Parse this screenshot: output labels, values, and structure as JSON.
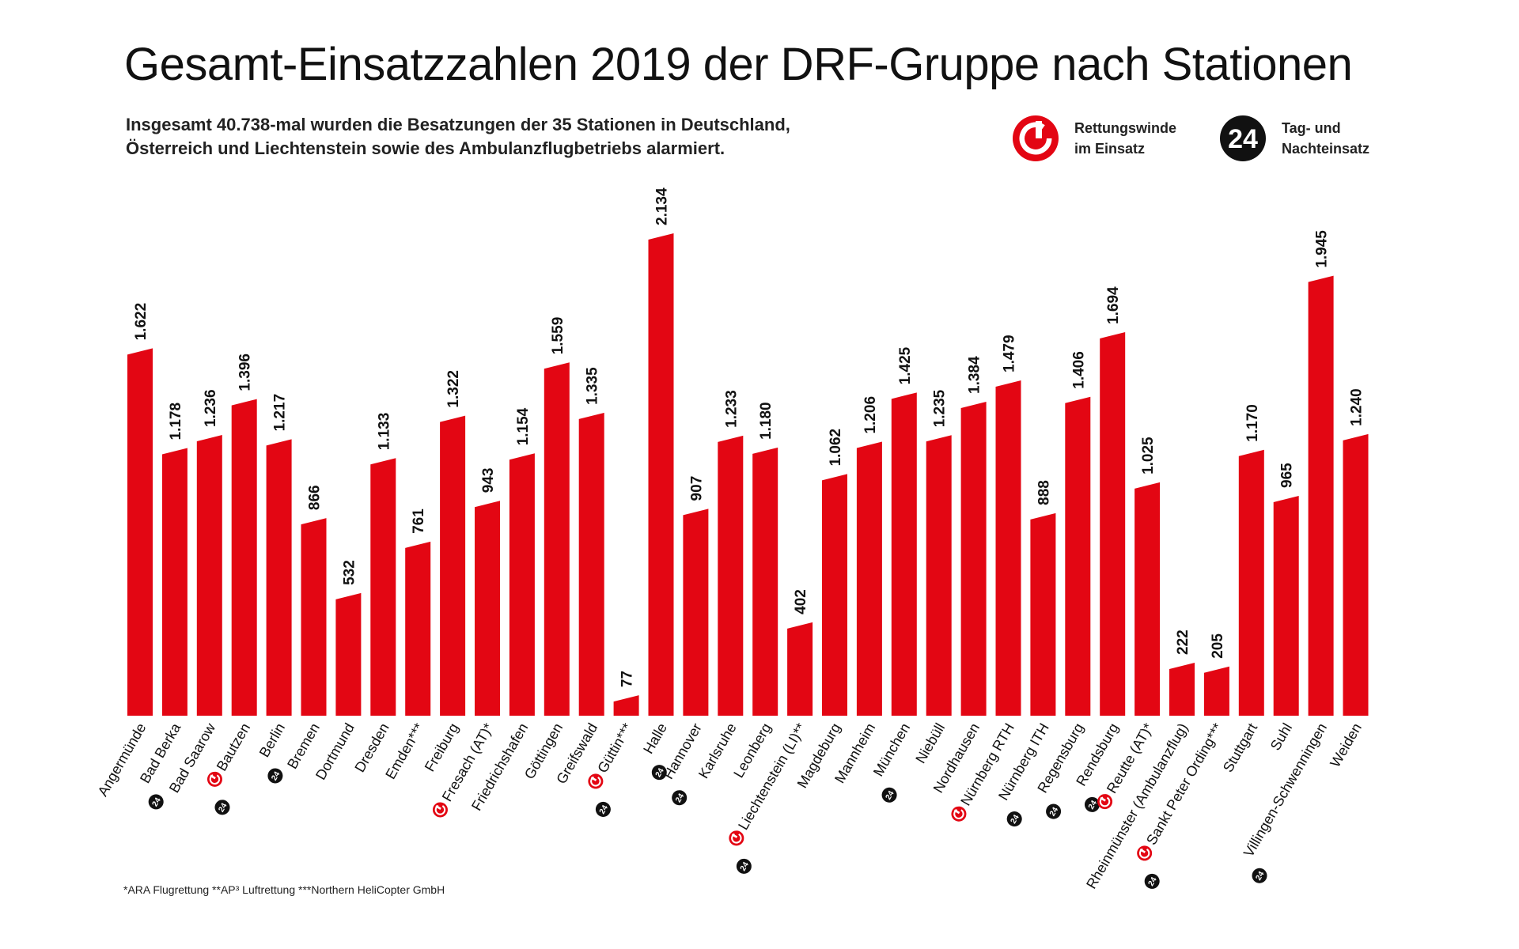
{
  "page": {
    "title": "Gesamt-Einsatzzahlen 2019 der DRF-Gruppe nach Stationen",
    "subtitle": "Insgesamt 40.738-mal wurden die Besatzungen der 35 Stationen in Deutschland, Österreich und Liechtenstein sowie des Ambulanzflugbetriebs alarmiert.",
    "footnote": "*ARA Flugrettung   **AP³ Luftrettung   ***Northern HeliCopter GmbH"
  },
  "legend": {
    "winch_line1": "Rettungswinde",
    "winch_line2": "im Einsatz",
    "night_line1": "Tag- und",
    "night_line2": "Nachteinsatz",
    "badge_text": "24"
  },
  "colors": {
    "bar": "#e30613",
    "badge": "#111111",
    "text": "#111111"
  },
  "chart_data": {
    "type": "bar",
    "title": "Gesamt-Einsatzzahlen 2019 der DRF-Gruppe nach Stationen",
    "xlabel": "",
    "ylabel": "",
    "ylim": [
      0,
      2134
    ],
    "grid": false,
    "categories": [
      "Angermünde",
      "Bad Berka",
      "Bad Saarow",
      "Bautzen",
      "Berlin",
      "Bremen",
      "Dortmund",
      "Dresden",
      "Emden***",
      "Freiburg",
      "Fresach (AT)*",
      "Friedrichshafen",
      "Göttingen",
      "Greifswald",
      "Güttin***",
      "Halle",
      "Hannover",
      "Karlsruhe",
      "Leonberg",
      "Liechtenstein (LI)**",
      "Magdeburg",
      "Mannheim",
      "München",
      "Niebüll",
      "Nordhausen",
      "Nürnberg RTH",
      "Nürnberg ITH",
      "Regensburg",
      "Rendsburg",
      "Reutte (AT)*",
      "Rheinmünster (Ambulanzflug)",
      "Sankt Peter Ording***",
      "Stuttgart",
      "Suhl",
      "Villingen-Schwenningen",
      "Weiden"
    ],
    "values": [
      1622,
      1178,
      1236,
      1396,
      1217,
      866,
      532,
      1133,
      761,
      1322,
      943,
      1154,
      1559,
      1335,
      77,
      2134,
      907,
      1233,
      1180,
      402,
      1062,
      1206,
      1425,
      1235,
      1384,
      1479,
      888,
      1406,
      1694,
      1025,
      222,
      205,
      1170,
      965,
      1945,
      1240
    ],
    "value_labels": [
      "1.622",
      "1.178",
      "1.236",
      "1.396",
      "1.217",
      "866",
      "532",
      "1.133",
      "761",
      "1.322",
      "943",
      "1.154",
      "1.559",
      "1.335",
      "77",
      "2.134",
      "907",
      "1.233",
      "1.180",
      "402",
      "1.062",
      "1.206",
      "1.425",
      "1.235",
      "1.384",
      "1.479",
      "888",
      "1.406",
      "1.694",
      "1.025",
      "222",
      "205",
      "1.170",
      "965",
      "1.945",
      "1.240"
    ],
    "winch": [
      false,
      false,
      false,
      true,
      false,
      false,
      false,
      false,
      false,
      false,
      true,
      false,
      false,
      false,
      true,
      false,
      false,
      false,
      false,
      true,
      false,
      false,
      false,
      false,
      false,
      true,
      false,
      false,
      false,
      true,
      false,
      true,
      false,
      false,
      false,
      false
    ],
    "night": [
      false,
      true,
      false,
      true,
      true,
      false,
      false,
      false,
      false,
      false,
      false,
      false,
      false,
      false,
      true,
      true,
      true,
      false,
      false,
      true,
      false,
      false,
      true,
      false,
      false,
      false,
      true,
      true,
      true,
      false,
      false,
      true,
      false,
      false,
      true,
      false
    ]
  }
}
